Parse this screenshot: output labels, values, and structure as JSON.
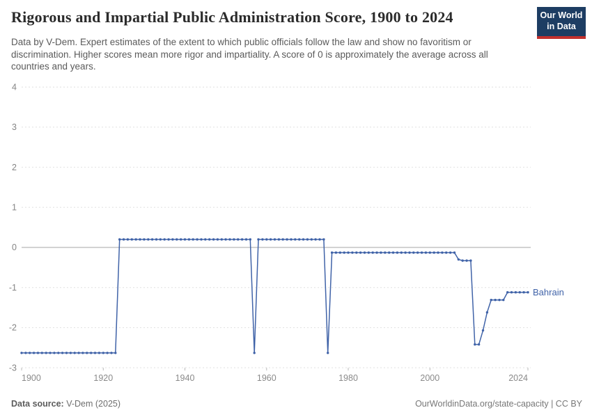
{
  "header": {
    "title": "Rigorous and Impartial Public Administration Score, 1900 to 2024",
    "subtitle": "Data by V-Dem. Expert estimates of the extent to which public officials follow the law and show no favoritism or discrimination. Higher scores mean more rigor and impartiality. A score of 0 is approximately the average across all countries and years.",
    "logo": {
      "line1": "Our World",
      "line2": "in Data",
      "bg_color": "#1d3d63",
      "stripe_color": "#c2302d"
    }
  },
  "footer": {
    "source_label": "Data source:",
    "source_value": " V-Dem (2025)",
    "credit": "OurWorldinData.org/state-capacity | CC BY"
  },
  "chart_data": {
    "type": "line",
    "title": "Rigorous and Impartial Public Administration Score, 1900 to 2024",
    "xlabel": "",
    "ylabel": "",
    "xlim": [
      1900,
      2024
    ],
    "ylim": [
      -3,
      4
    ],
    "x_ticks": [
      1900,
      1920,
      1940,
      1960,
      1980,
      2000,
      2024
    ],
    "y_ticks": [
      4,
      3,
      2,
      1,
      0,
      -1,
      -2,
      -3
    ],
    "grid": "horizontal-dashed",
    "zero_line": true,
    "legend_position": "end-of-line-label",
    "colors": {
      "grid": "#e0e0e0",
      "zero_line": "#a6a6a6",
      "axis_text": "#858585",
      "series_blue": "#4063a8"
    },
    "series": [
      {
        "name": "Bahrain",
        "color": "#4063a8",
        "points": [
          [
            1900,
            -2.63
          ],
          [
            1901,
            -2.63
          ],
          [
            1902,
            -2.63
          ],
          [
            1903,
            -2.63
          ],
          [
            1904,
            -2.63
          ],
          [
            1905,
            -2.63
          ],
          [
            1906,
            -2.63
          ],
          [
            1907,
            -2.63
          ],
          [
            1908,
            -2.63
          ],
          [
            1909,
            -2.63
          ],
          [
            1910,
            -2.63
          ],
          [
            1911,
            -2.63
          ],
          [
            1912,
            -2.63
          ],
          [
            1913,
            -2.63
          ],
          [
            1914,
            -2.63
          ],
          [
            1915,
            -2.63
          ],
          [
            1916,
            -2.63
          ],
          [
            1917,
            -2.63
          ],
          [
            1918,
            -2.63
          ],
          [
            1919,
            -2.63
          ],
          [
            1920,
            -2.63
          ],
          [
            1921,
            -2.63
          ],
          [
            1922,
            -2.63
          ],
          [
            1923,
            -2.63
          ],
          [
            1924,
            0.2
          ],
          [
            1925,
            0.2
          ],
          [
            1926,
            0.2
          ],
          [
            1927,
            0.2
          ],
          [
            1928,
            0.2
          ],
          [
            1929,
            0.2
          ],
          [
            1930,
            0.2
          ],
          [
            1931,
            0.2
          ],
          [
            1932,
            0.2
          ],
          [
            1933,
            0.2
          ],
          [
            1934,
            0.2
          ],
          [
            1935,
            0.2
          ],
          [
            1936,
            0.2
          ],
          [
            1937,
            0.2
          ],
          [
            1938,
            0.2
          ],
          [
            1939,
            0.2
          ],
          [
            1940,
            0.2
          ],
          [
            1941,
            0.2
          ],
          [
            1942,
            0.2
          ],
          [
            1943,
            0.2
          ],
          [
            1944,
            0.2
          ],
          [
            1945,
            0.2
          ],
          [
            1946,
            0.2
          ],
          [
            1947,
            0.2
          ],
          [
            1948,
            0.2
          ],
          [
            1949,
            0.2
          ],
          [
            1950,
            0.2
          ],
          [
            1951,
            0.2
          ],
          [
            1952,
            0.2
          ],
          [
            1953,
            0.2
          ],
          [
            1954,
            0.2
          ],
          [
            1955,
            0.2
          ],
          [
            1956,
            0.2
          ],
          [
            1957,
            -2.63
          ],
          [
            1958,
            0.2
          ],
          [
            1959,
            0.2
          ],
          [
            1960,
            0.2
          ],
          [
            1961,
            0.2
          ],
          [
            1962,
            0.2
          ],
          [
            1963,
            0.2
          ],
          [
            1964,
            0.2
          ],
          [
            1965,
            0.2
          ],
          [
            1966,
            0.2
          ],
          [
            1967,
            0.2
          ],
          [
            1968,
            0.2
          ],
          [
            1969,
            0.2
          ],
          [
            1970,
            0.2
          ],
          [
            1971,
            0.2
          ],
          [
            1972,
            0.2
          ],
          [
            1973,
            0.2
          ],
          [
            1974,
            0.2
          ],
          [
            1975,
            -2.63
          ],
          [
            1976,
            -0.13
          ],
          [
            1977,
            -0.13
          ],
          [
            1978,
            -0.13
          ],
          [
            1979,
            -0.13
          ],
          [
            1980,
            -0.13
          ],
          [
            1981,
            -0.13
          ],
          [
            1982,
            -0.13
          ],
          [
            1983,
            -0.13
          ],
          [
            1984,
            -0.13
          ],
          [
            1985,
            -0.13
          ],
          [
            1986,
            -0.13
          ],
          [
            1987,
            -0.13
          ],
          [
            1988,
            -0.13
          ],
          [
            1989,
            -0.13
          ],
          [
            1990,
            -0.13
          ],
          [
            1991,
            -0.13
          ],
          [
            1992,
            -0.13
          ],
          [
            1993,
            -0.13
          ],
          [
            1994,
            -0.13
          ],
          [
            1995,
            -0.13
          ],
          [
            1996,
            -0.13
          ],
          [
            1997,
            -0.13
          ],
          [
            1998,
            -0.13
          ],
          [
            1999,
            -0.13
          ],
          [
            2000,
            -0.13
          ],
          [
            2001,
            -0.13
          ],
          [
            2002,
            -0.13
          ],
          [
            2003,
            -0.13
          ],
          [
            2004,
            -0.13
          ],
          [
            2005,
            -0.13
          ],
          [
            2006,
            -0.13
          ],
          [
            2007,
            -0.3
          ],
          [
            2008,
            -0.33
          ],
          [
            2009,
            -0.33
          ],
          [
            2010,
            -0.33
          ],
          [
            2011,
            -2.42
          ],
          [
            2012,
            -2.42
          ],
          [
            2013,
            -2.07
          ],
          [
            2014,
            -1.62
          ],
          [
            2015,
            -1.31
          ],
          [
            2016,
            -1.31
          ],
          [
            2017,
            -1.31
          ],
          [
            2018,
            -1.31
          ],
          [
            2019,
            -1.12
          ],
          [
            2020,
            -1.12
          ],
          [
            2021,
            -1.12
          ],
          [
            2022,
            -1.12
          ],
          [
            2023,
            -1.12
          ],
          [
            2024,
            -1.12
          ]
        ]
      }
    ]
  }
}
